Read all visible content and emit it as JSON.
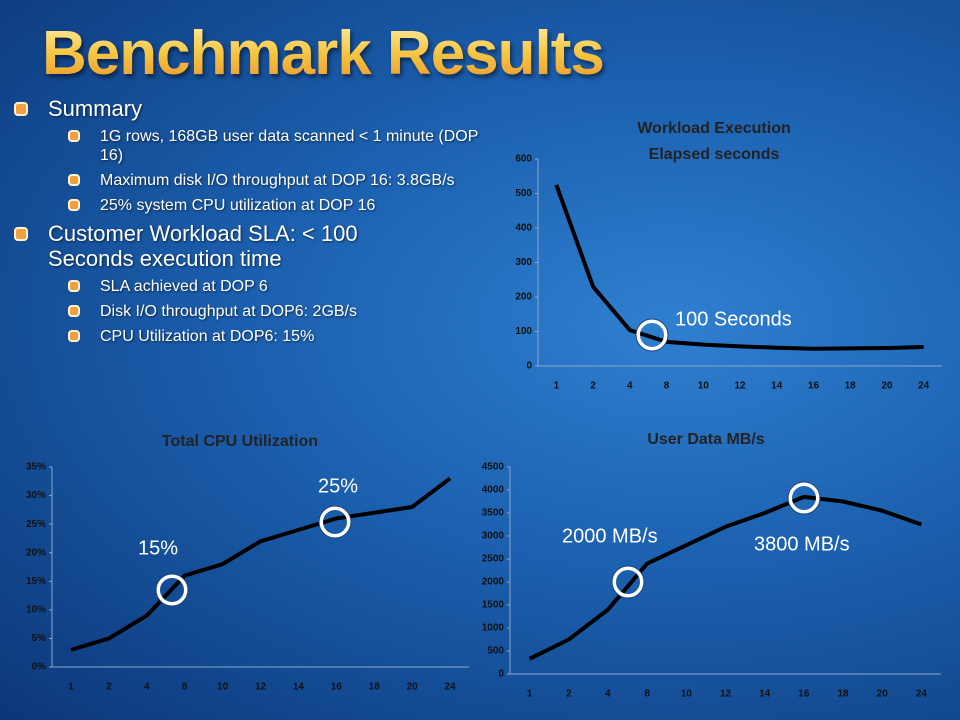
{
  "slide": {
    "title": "Benchmark Results",
    "bullets": [
      {
        "text": "Summary",
        "sub": [
          "1G rows, 168GB user data scanned < 1 minute (DOP 16)",
          "Maximum disk I/O throughput at DOP 16: 3.8GB/s",
          "25% system CPU utilization at DOP 16"
        ]
      },
      {
        "text": "Customer Workload SLA: < 100 Seconds execution time",
        "sub": [
          "SLA achieved at DOP 6",
          "Disk I/O throughput at DOP6: 2GB/s",
          "CPU Utilization at DOP6: 15%"
        ]
      }
    ]
  },
  "chart_data": [
    {
      "type": "line",
      "title": "Workload Execution",
      "subtitle": "Elapsed seconds",
      "categories": [
        "1",
        "2",
        "4",
        "8",
        "10",
        "12",
        "14",
        "16",
        "18",
        "20",
        "24"
      ],
      "values": [
        525,
        230,
        104,
        70,
        62,
        57,
        53,
        50,
        51,
        52,
        55
      ],
      "color": "#000000",
      "ylim": [
        0,
        600
      ],
      "yticks": [
        0,
        100,
        200,
        300,
        400,
        500,
        600
      ],
      "annotations": [
        "100 Seconds"
      ]
    },
    {
      "type": "line",
      "title": "Total CPU Utilization",
      "categories": [
        "1",
        "2",
        "4",
        "8",
        "10",
        "12",
        "14",
        "16",
        "18",
        "20",
        "24"
      ],
      "values": [
        3,
        5,
        9,
        16,
        18,
        22,
        24,
        26,
        27,
        28,
        33
      ],
      "color": "#000000",
      "ylim": [
        0,
        35
      ],
      "yticks": [
        {
          "value": 0,
          "label": "0%"
        },
        {
          "value": 5,
          "label": "5%"
        },
        {
          "value": 10,
          "label": "10%"
        },
        {
          "value": 15,
          "label": "15%"
        },
        {
          "value": 20,
          "label": "20%"
        },
        {
          "value": 25,
          "label": "25%"
        },
        {
          "value": 30,
          "label": "30%"
        },
        {
          "value": 35,
          "label": "35%"
        }
      ],
      "annotations": [
        "25%",
        "15%"
      ]
    },
    {
      "type": "line",
      "title": "User Data MB/s",
      "categories": [
        "1",
        "2",
        "4",
        "8",
        "10",
        "12",
        "14",
        "16",
        "18",
        "20",
        "24"
      ],
      "values": [
        330,
        750,
        1400,
        2400,
        2800,
        3200,
        3500,
        3850,
        3750,
        3550,
        3250
      ],
      "color": "#000000",
      "ylim": [
        0,
        4500
      ],
      "yticks": [
        0,
        500,
        1000,
        1500,
        2000,
        2500,
        3000,
        3500,
        4000,
        4500
      ],
      "annotations": [
        "2000 MB/s",
        "3800 MB/s"
      ]
    }
  ]
}
